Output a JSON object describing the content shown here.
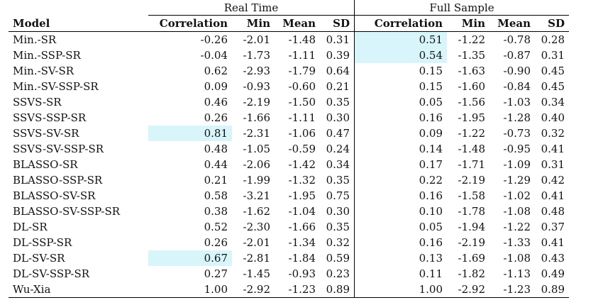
{
  "table": {
    "group_headers": [
      "Real Time",
      "Full Sample"
    ],
    "columns": [
      "Model",
      "Correlation",
      "Min",
      "Mean",
      "SD",
      "Correlation",
      "Min",
      "Mean",
      "SD"
    ],
    "highlight_color": "#d7f5fa",
    "rows": [
      {
        "model": "Min.-SR",
        "rt": [
          "-0.26",
          "-2.01",
          "-1.48",
          "0.31"
        ],
        "fs": [
          "0.51",
          "-1.22",
          "-0.78",
          "0.28"
        ],
        "hl_rt": false,
        "hl_fs": true
      },
      {
        "model": "Min.-SSP-SR",
        "rt": [
          "-0.04",
          "-1.73",
          "-1.11",
          "0.39"
        ],
        "fs": [
          "0.54",
          "-1.35",
          "-0.87",
          "0.31"
        ],
        "hl_rt": false,
        "hl_fs": true
      },
      {
        "model": "Min.-SV-SR",
        "rt": [
          "0.62",
          "-2.93",
          "-1.79",
          "0.64"
        ],
        "fs": [
          "0.15",
          "-1.63",
          "-0.90",
          "0.45"
        ],
        "hl_rt": false,
        "hl_fs": false
      },
      {
        "model": "Min.-SV-SSP-SR",
        "rt": [
          "0.09",
          "-0.93",
          "-0.60",
          "0.21"
        ],
        "fs": [
          "0.15",
          "-1.60",
          "-0.84",
          "0.45"
        ],
        "hl_rt": false,
        "hl_fs": false
      },
      {
        "model": "SSVS-SR",
        "rt": [
          "0.46",
          "-2.19",
          "-1.50",
          "0.35"
        ],
        "fs": [
          "0.05",
          "-1.56",
          "-1.03",
          "0.34"
        ],
        "hl_rt": false,
        "hl_fs": false
      },
      {
        "model": "SSVS-SSP-SR",
        "rt": [
          "0.26",
          "-1.66",
          "-1.11",
          "0.30"
        ],
        "fs": [
          "0.16",
          "-1.95",
          "-1.28",
          "0.40"
        ],
        "hl_rt": false,
        "hl_fs": false
      },
      {
        "model": "SSVS-SV-SR",
        "rt": [
          "0.81",
          "-2.31",
          "-1.06",
          "0.47"
        ],
        "fs": [
          "0.09",
          "-1.22",
          "-0.73",
          "0.32"
        ],
        "hl_rt": true,
        "hl_fs": false
      },
      {
        "model": "SSVS-SV-SSP-SR",
        "rt": [
          "0.48",
          "-1.05",
          "-0.59",
          "0.24"
        ],
        "fs": [
          "0.14",
          "-1.48",
          "-0.95",
          "0.41"
        ],
        "hl_rt": false,
        "hl_fs": false
      },
      {
        "model": "BLASSO-SR",
        "rt": [
          "0.44",
          "-2.06",
          "-1.42",
          "0.34"
        ],
        "fs": [
          "0.17",
          "-1.71",
          "-1.09",
          "0.31"
        ],
        "hl_rt": false,
        "hl_fs": false
      },
      {
        "model": "BLASSO-SSP-SR",
        "rt": [
          "0.21",
          "-1.99",
          "-1.32",
          "0.35"
        ],
        "fs": [
          "0.22",
          "-2.19",
          "-1.29",
          "0.42"
        ],
        "hl_rt": false,
        "hl_fs": false
      },
      {
        "model": "BLASSO-SV-SR",
        "rt": [
          "0.58",
          "-3.21",
          "-1.95",
          "0.75"
        ],
        "fs": [
          "0.16",
          "-1.58",
          "-1.02",
          "0.41"
        ],
        "hl_rt": false,
        "hl_fs": false
      },
      {
        "model": "BLASSO-SV-SSP-SR",
        "rt": [
          "0.38",
          "-1.62",
          "-1.04",
          "0.30"
        ],
        "fs": [
          "0.10",
          "-1.78",
          "-1.08",
          "0.48"
        ],
        "hl_rt": false,
        "hl_fs": false
      },
      {
        "model": "DL-SR",
        "rt": [
          "0.52",
          "-2.30",
          "-1.66",
          "0.35"
        ],
        "fs": [
          "0.05",
          "-1.94",
          "-1.22",
          "0.37"
        ],
        "hl_rt": false,
        "hl_fs": false
      },
      {
        "model": "DL-SSP-SR",
        "rt": [
          "0.26",
          "-2.01",
          "-1.34",
          "0.32"
        ],
        "fs": [
          "0.16",
          "-2.19",
          "-1.33",
          "0.41"
        ],
        "hl_rt": false,
        "hl_fs": false
      },
      {
        "model": "DL-SV-SR",
        "rt": [
          "0.67",
          "-2.81",
          "-1.84",
          "0.59"
        ],
        "fs": [
          "0.13",
          "-1.69",
          "-1.08",
          "0.43"
        ],
        "hl_rt": true,
        "hl_fs": false
      },
      {
        "model": "DL-SV-SSP-SR",
        "rt": [
          "0.27",
          "-1.45",
          "-0.93",
          "0.23"
        ],
        "fs": [
          "0.11",
          "-1.82",
          "-1.13",
          "0.49"
        ],
        "hl_rt": false,
        "hl_fs": false
      },
      {
        "model": "Wu-Xia",
        "rt": [
          "1.00",
          "-2.92",
          "-1.23",
          "0.89"
        ],
        "fs": [
          "1.00",
          "-2.92",
          "-1.23",
          "0.89"
        ],
        "hl_rt": false,
        "hl_fs": false
      }
    ]
  }
}
